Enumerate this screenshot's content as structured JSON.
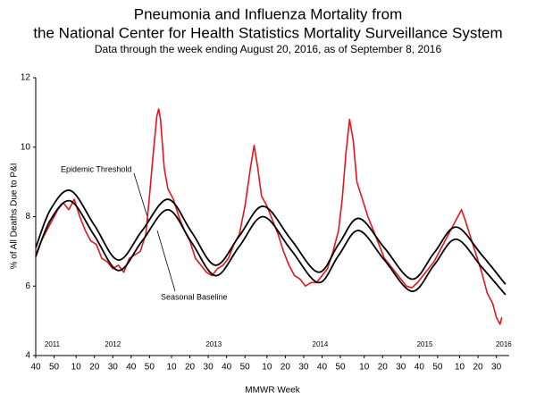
{
  "chart_data": {
    "type": "line",
    "title": "Pneumonia and Influenza Mortality from",
    "title_line2": "the National Center for Health Statistics Mortality Surveillance System",
    "subtitle": "Data through the week ending August 20, 2016, as of September 8, 2016",
    "y_label": "% of All Deaths Due to P&I",
    "x_label": "MMWR Week",
    "xlim": [
      0,
      258
    ],
    "ylim": [
      4,
      12
    ],
    "yticks": [
      4,
      6,
      8,
      10,
      12
    ],
    "xticks": [
      {
        "value": 0,
        "label": "40"
      },
      {
        "value": 10,
        "label": "50"
      },
      {
        "value": 22,
        "label": "10"
      },
      {
        "value": 32,
        "label": "20"
      },
      {
        "value": 42,
        "label": "30"
      },
      {
        "value": 52,
        "label": "40"
      },
      {
        "value": 62,
        "label": "50"
      },
      {
        "value": 74,
        "label": "10"
      },
      {
        "value": 84,
        "label": "20"
      },
      {
        "value": 94,
        "label": "30"
      },
      {
        "value": 104,
        "label": "40"
      },
      {
        "value": 114,
        "label": "50"
      },
      {
        "value": 126,
        "label": "10"
      },
      {
        "value": 136,
        "label": "20"
      },
      {
        "value": 146,
        "label": "30"
      },
      {
        "value": 156,
        "label": "40"
      },
      {
        "value": 166,
        "label": "50"
      },
      {
        "value": 179,
        "label": "10"
      },
      {
        "value": 189,
        "label": "20"
      },
      {
        "value": 199,
        "label": "30"
      },
      {
        "value": 209,
        "label": "40"
      },
      {
        "value": 219,
        "label": "50"
      },
      {
        "value": 231,
        "label": "10"
      },
      {
        "value": 241,
        "label": "20"
      },
      {
        "value": 251,
        "label": "30"
      }
    ],
    "year_labels": [
      {
        "value": 9,
        "label": "2011"
      },
      {
        "value": 42,
        "label": "2012"
      },
      {
        "value": 97,
        "label": "2013"
      },
      {
        "value": 155,
        "label": "2014"
      },
      {
        "value": 212,
        "label": "2015"
      },
      {
        "value": 255,
        "label": "2016"
      }
    ],
    "series": [
      {
        "color": "#e8141b",
        "smooth": false,
        "x": [
          0,
          3,
          6,
          9,
          12,
          15,
          18,
          21,
          24,
          27,
          30,
          33,
          36,
          39,
          42,
          45,
          48,
          51,
          54,
          57,
          60,
          62,
          64,
          66,
          67,
          68,
          70,
          72,
          75,
          78,
          81,
          84,
          87,
          90,
          93,
          96,
          99,
          102,
          105,
          108,
          111,
          114,
          117,
          119,
          121,
          123,
          126,
          129,
          132,
          135,
          138,
          141,
          144,
          147,
          150,
          153,
          156,
          159,
          162,
          165,
          167,
          169,
          171,
          173,
          175,
          178,
          181,
          184,
          187,
          190,
          193,
          196,
          199,
          202,
          205,
          208,
          211,
          214,
          217,
          220,
          223,
          226,
          229,
          232,
          234,
          237,
          240,
          243,
          246,
          249,
          251,
          253,
          254
        ],
        "values": [
          6.9,
          7.3,
          7.6,
          7.9,
          8.2,
          8.4,
          8.2,
          8.5,
          8.0,
          7.6,
          7.3,
          7.2,
          6.8,
          6.7,
          6.5,
          6.6,
          6.4,
          6.8,
          6.9,
          7.0,
          7.5,
          8.6,
          9.8,
          10.9,
          11.1,
          10.8,
          9.4,
          8.8,
          8.5,
          8.0,
          7.6,
          7.3,
          6.8,
          6.6,
          6.4,
          6.3,
          6.5,
          6.6,
          6.8,
          7.2,
          7.5,
          8.3,
          9.4,
          10.05,
          9.4,
          8.6,
          8.3,
          7.9,
          7.5,
          7.0,
          6.6,
          6.3,
          6.2,
          6.0,
          6.1,
          6.1,
          6.3,
          6.5,
          7.0,
          7.6,
          8.5,
          9.8,
          10.8,
          10.2,
          9.0,
          8.5,
          8.0,
          7.6,
          7.2,
          6.8,
          6.6,
          6.4,
          6.2,
          6.0,
          5.95,
          6.1,
          6.3,
          6.5,
          6.7,
          7.0,
          7.3,
          7.6,
          7.9,
          8.2,
          7.9,
          7.4,
          6.9,
          6.4,
          5.8,
          5.5,
          5.1,
          4.9,
          5.1
        ]
      },
      {
        "name": "Epidemic Threshold",
        "color": "#000000",
        "smooth": true,
        "x": [
          0,
          8,
          19,
          32,
          45,
          58,
          72,
          85,
          98,
          111,
          124,
          139,
          154,
          165,
          176,
          190,
          205,
          217,
          229,
          243,
          256
        ],
        "values": [
          7.1,
          8.2,
          8.75,
          7.75,
          6.75,
          7.6,
          8.5,
          7.55,
          6.6,
          7.45,
          8.3,
          7.35,
          6.4,
          7.2,
          7.95,
          7.1,
          6.2,
          6.95,
          7.7,
          6.9,
          6.05
        ]
      },
      {
        "name": "Seasonal Baseline",
        "color": "#000000",
        "smooth": true,
        "x": [
          0,
          8,
          19,
          32,
          45,
          58,
          72,
          85,
          98,
          111,
          124,
          139,
          154,
          165,
          176,
          190,
          205,
          217,
          229,
          243,
          256
        ],
        "values": [
          6.85,
          7.9,
          8.45,
          7.45,
          6.45,
          7.3,
          8.2,
          7.25,
          6.3,
          7.15,
          8.0,
          7.05,
          6.1,
          6.88,
          7.6,
          6.75,
          5.85,
          6.6,
          7.35,
          6.55,
          5.75
        ]
      }
    ]
  }
}
